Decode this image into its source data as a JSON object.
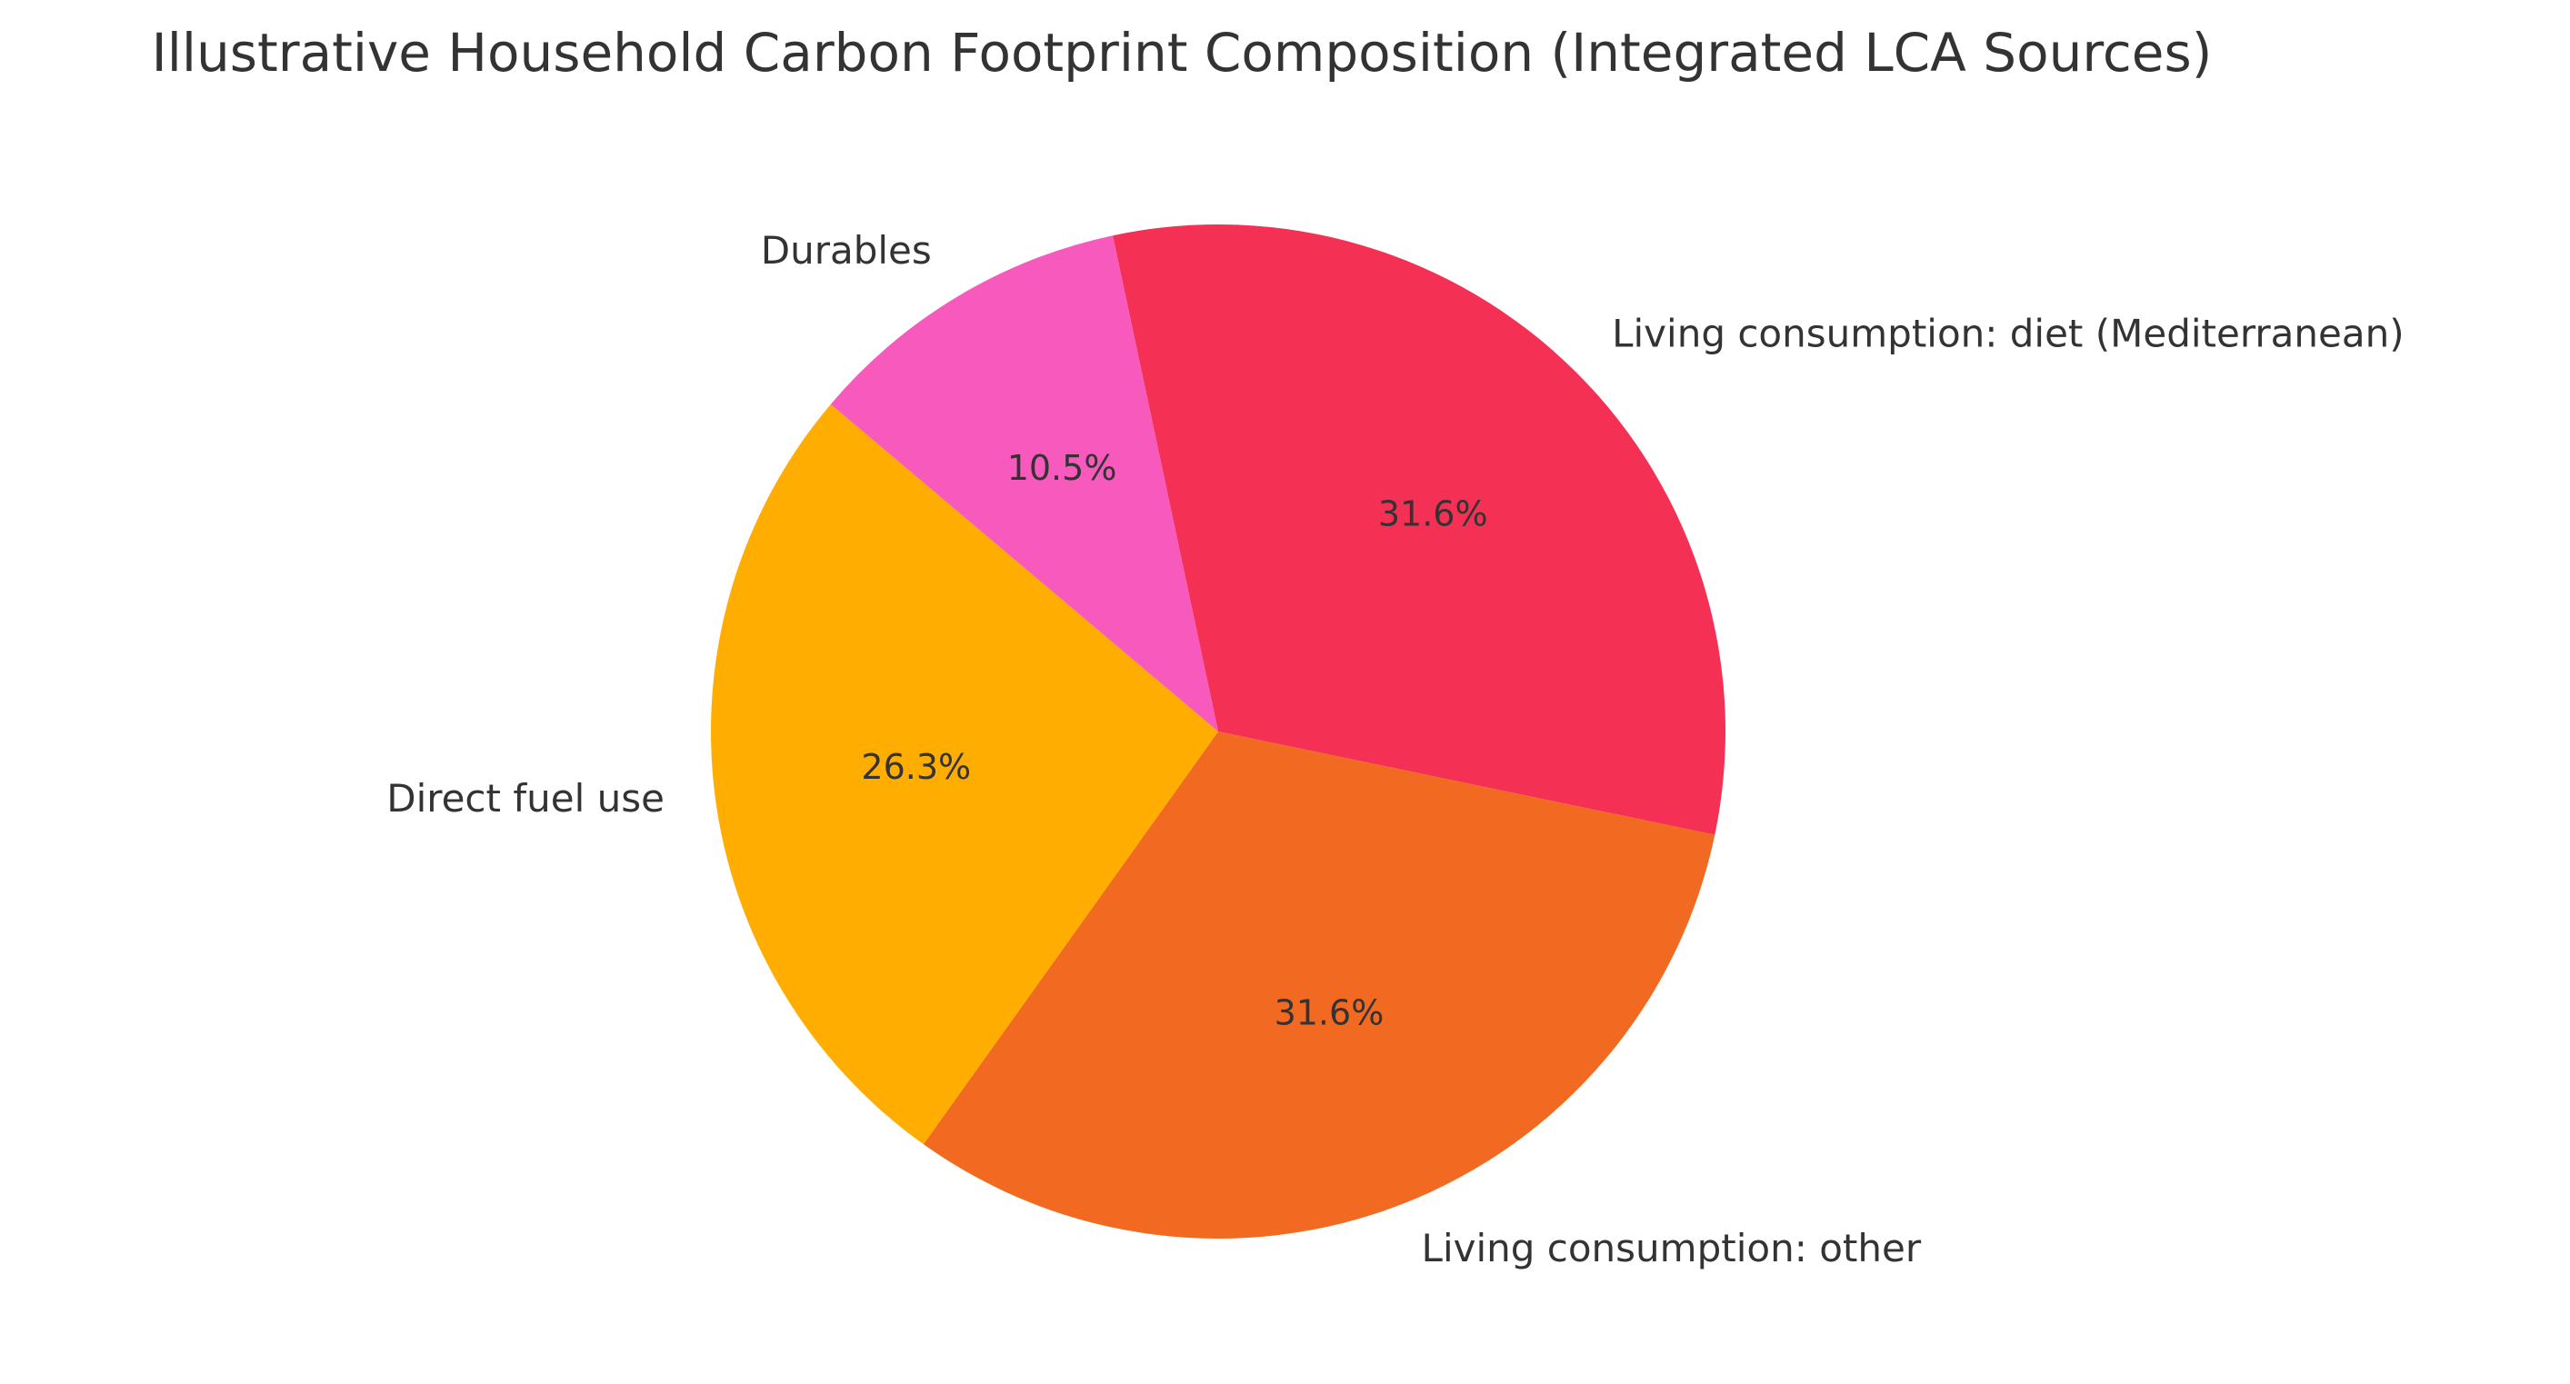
{
  "chart_data": {
    "type": "pie",
    "title": "Illustrative Household Carbon Footprint Composition (Integrated LCA Sources)",
    "categories": [
      "Living consumption: diet (Mediterranean)",
      "Living consumption: other",
      "Direct fuel use",
      "Durables"
    ],
    "values": [
      31.6,
      31.6,
      26.3,
      10.5
    ],
    "percent_labels": [
      "31.6%",
      "31.6%",
      "26.3%",
      "10.5%"
    ],
    "colors": [
      "#F43155",
      "#F26A21",
      "#FFAD00",
      "#F759BD"
    ],
    "start_angle_deg": 102,
    "direction": "clockwise",
    "legend": "none"
  }
}
